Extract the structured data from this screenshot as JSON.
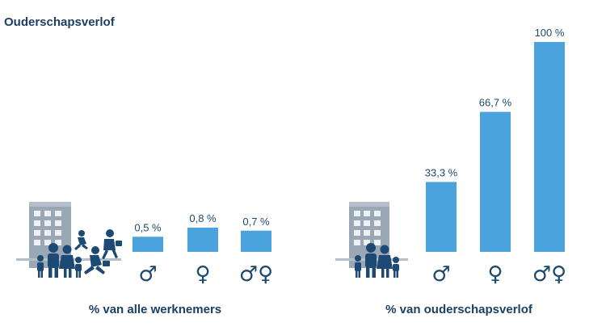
{
  "colors": {
    "bar": "#4aa3dc",
    "icon": "#1d4a74",
    "building": "#9aa8b5",
    "text": "#1c3f63"
  },
  "chart_data": {
    "title": "Ouderschapsverlof",
    "charts": [
      {
        "type": "bar",
        "xlabel": "% van alle werknemers",
        "categories": [
          "♂",
          "♀",
          "♂♀"
        ],
        "values": [
          0.5,
          0.8,
          0.7
        ],
        "value_labels": [
          "0,5 %",
          "0,8 %",
          "0,7 %"
        ],
        "ylim": [
          0,
          6
        ],
        "icon": "building-family-commuters-icon"
      },
      {
        "type": "bar",
        "xlabel": "% van ouderschapsverlof",
        "categories": [
          "♂",
          "♀",
          "♂♀"
        ],
        "values": [
          33.3,
          66.7,
          100
        ],
        "value_labels": [
          "33,3 %",
          "66,7 %",
          "100 %"
        ],
        "ylim": [
          0,
          100
        ],
        "icon": "building-family-icon"
      }
    ]
  }
}
